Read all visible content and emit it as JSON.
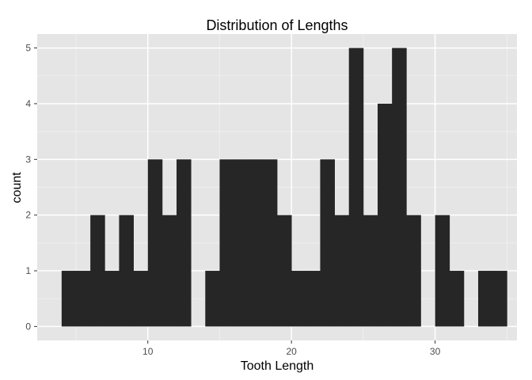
{
  "chart_data": {
    "type": "bar",
    "title": "Distribution of Lengths",
    "xlabel": "Tooth Length",
    "ylabel": "count",
    "bin_width": 1,
    "bins": [
      {
        "x0": 4,
        "count": 1
      },
      {
        "x0": 5,
        "count": 1
      },
      {
        "x0": 6,
        "count": 2
      },
      {
        "x0": 7,
        "count": 1
      },
      {
        "x0": 8,
        "count": 2
      },
      {
        "x0": 9,
        "count": 1
      },
      {
        "x0": 10,
        "count": 3
      },
      {
        "x0": 11,
        "count": 2
      },
      {
        "x0": 12,
        "count": 3
      },
      {
        "x0": 13,
        "count": 0
      },
      {
        "x0": 14,
        "count": 1
      },
      {
        "x0": 15,
        "count": 3
      },
      {
        "x0": 16,
        "count": 3
      },
      {
        "x0": 17,
        "count": 3
      },
      {
        "x0": 18,
        "count": 3
      },
      {
        "x0": 19,
        "count": 2
      },
      {
        "x0": 20,
        "count": 1
      },
      {
        "x0": 21,
        "count": 1
      },
      {
        "x0": 22,
        "count": 3
      },
      {
        "x0": 23,
        "count": 2
      },
      {
        "x0": 24,
        "count": 5
      },
      {
        "x0": 25,
        "count": 2
      },
      {
        "x0": 26,
        "count": 4
      },
      {
        "x0": 27,
        "count": 5
      },
      {
        "x0": 28,
        "count": 2
      },
      {
        "x0": 29,
        "count": 0
      },
      {
        "x0": 30,
        "count": 2
      },
      {
        "x0": 31,
        "count": 1
      },
      {
        "x0": 32,
        "count": 0
      },
      {
        "x0": 33,
        "count": 1
      },
      {
        "x0": 34,
        "count": 1
      }
    ],
    "xlim": [
      2.3,
      35.7
    ],
    "ylim": [
      -0.25,
      5.25
    ],
    "x_ticks": [
      10,
      20,
      30
    ],
    "y_ticks": [
      0,
      1,
      2,
      3,
      4,
      5
    ],
    "grid": true,
    "colors": {
      "bar": "#262626",
      "panel": "#e5e5e5",
      "grid_major": "#ffffff",
      "grid_minor": "#f2f2f2"
    }
  }
}
